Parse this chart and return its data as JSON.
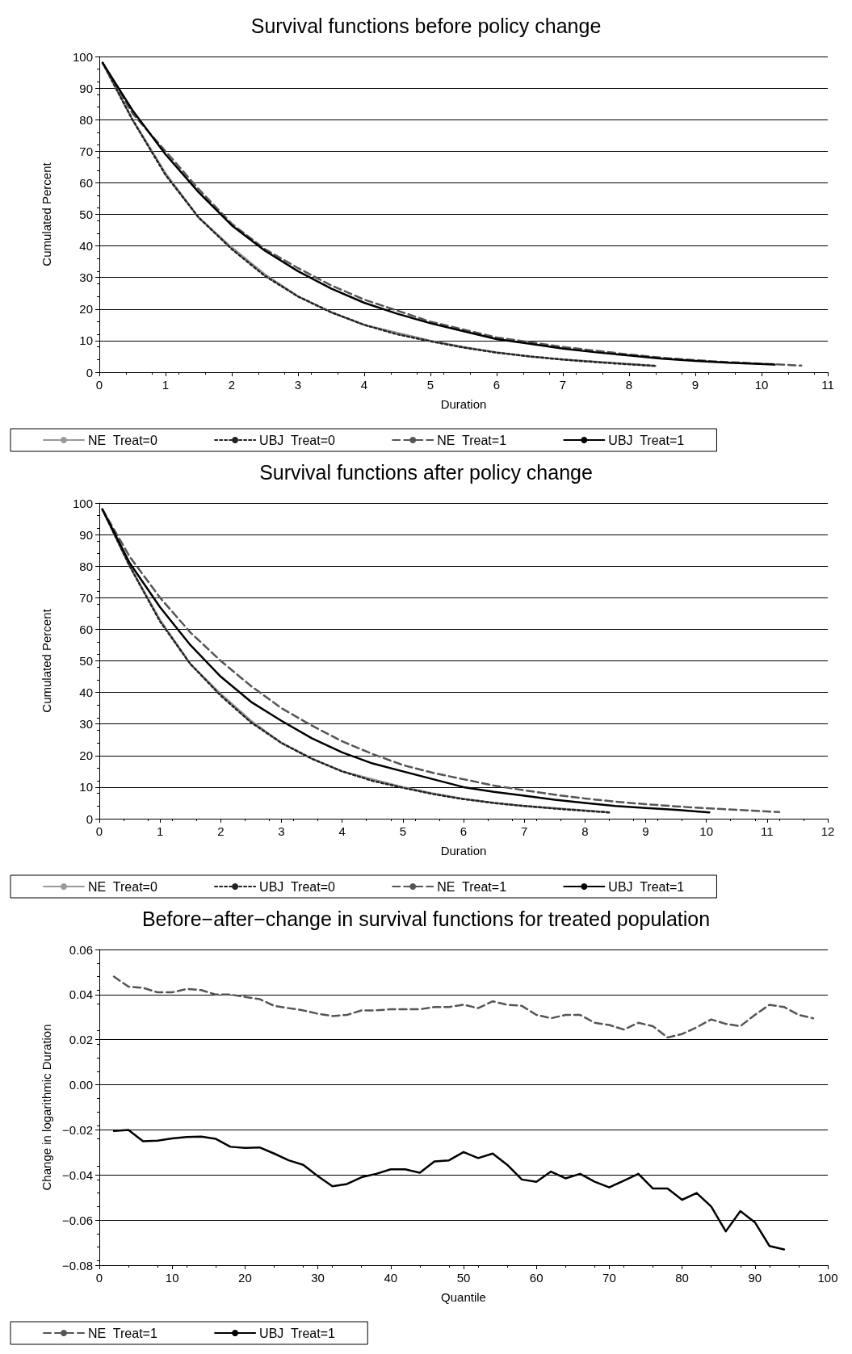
{
  "chart_data": [
    {
      "type": "line",
      "title": "Survival functions before policy change",
      "xlabel": "Duration",
      "ylabel": "Cumulated Percent",
      "xlim": [
        0,
        11
      ],
      "xticks": [
        0,
        1,
        2,
        3,
        4,
        5,
        6,
        7,
        8,
        9,
        10,
        11
      ],
      "ylim": [
        0,
        100
      ],
      "yticks": [
        0,
        10,
        20,
        30,
        40,
        50,
        60,
        70,
        80,
        90,
        100
      ],
      "grid": "y",
      "legend": "bottom",
      "marker": "none",
      "series": [
        {
          "name": "NE  Treat=0",
          "color": "#999999",
          "line_style": "solid",
          "x": [
            0.05,
            0.5,
            1,
            1.5,
            2,
            2.5,
            3,
            3.5,
            4,
            4.5,
            5,
            5.5,
            6,
            6.5,
            7,
            7.5,
            8,
            8.4
          ],
          "values": [
            98,
            80,
            63,
            49,
            39.5,
            31,
            24,
            19,
            15,
            12.5,
            10,
            8,
            6.3,
            5,
            4,
            3.3,
            2.6,
            2
          ]
        },
        {
          "name": "UBJ  Treat=0",
          "color": "#222222",
          "line_style": "dotted",
          "x": [
            0.05,
            0.5,
            1,
            1.5,
            2,
            2.5,
            3,
            3.5,
            4,
            4.5,
            5,
            5.5,
            6,
            6.5,
            7,
            7.5,
            8,
            8.4
          ],
          "values": [
            98,
            80,
            62.5,
            49,
            39,
            30.5,
            24,
            19,
            15,
            12,
            9.8,
            7.8,
            6.2,
            5,
            4,
            3.2,
            2.5,
            2
          ]
        },
        {
          "name": "NE  Treat=1",
          "color": "#555555",
          "line_style": "dashed",
          "x": [
            0.05,
            0.5,
            1,
            1.5,
            2,
            2.5,
            3,
            3.5,
            4,
            4.5,
            5,
            5.5,
            6,
            6.5,
            7,
            7.5,
            8,
            8.5,
            9,
            9.5,
            10,
            10.6
          ],
          "values": [
            98,
            82,
            70,
            58,
            47,
            39,
            33,
            27.5,
            23,
            19.5,
            16,
            13.5,
            11,
            9.5,
            8,
            6.8,
            5.6,
            4.6,
            3.8,
            3.2,
            2.7,
            2.1
          ]
        },
        {
          "name": "UBJ  Treat=1",
          "color": "#000000",
          "line_style": "solid",
          "x": [
            0.05,
            0.5,
            1,
            1.5,
            2,
            2.5,
            3,
            3.5,
            4,
            4.5,
            5,
            5.5,
            6,
            6.5,
            7,
            7.5,
            8,
            8.5,
            9,
            9.5,
            10.2
          ],
          "values": [
            98,
            83,
            69,
            57,
            46.5,
            38.5,
            32,
            26.5,
            22,
            18.5,
            15.5,
            13,
            10.5,
            9,
            7.5,
            6.3,
            5.3,
            4.3,
            3.6,
            3,
            2.4
          ]
        }
      ]
    },
    {
      "type": "line",
      "title": "Survival functions after policy change",
      "xlabel": "Duration",
      "ylabel": "Cumulated Percent",
      "xlim": [
        0,
        12
      ],
      "xticks": [
        0,
        1,
        2,
        3,
        4,
        5,
        6,
        7,
        8,
        9,
        10,
        11,
        12
      ],
      "ylim": [
        0,
        100
      ],
      "yticks": [
        0,
        10,
        20,
        30,
        40,
        50,
        60,
        70,
        80,
        90,
        100
      ],
      "grid": "y",
      "legend": "bottom",
      "marker": "none",
      "series": [
        {
          "name": "NE  Treat=0",
          "color": "#999999",
          "line_style": "solid",
          "x": [
            0.05,
            0.5,
            1,
            1.5,
            2,
            2.5,
            3,
            3.5,
            4,
            4.5,
            5,
            5.5,
            6,
            6.5,
            7,
            7.5,
            8,
            8.4
          ],
          "values": [
            98,
            80,
            63,
            49,
            39.5,
            31,
            24,
            19,
            15,
            12.5,
            10,
            8,
            6.3,
            5,
            4,
            3.3,
            2.6,
            2
          ]
        },
        {
          "name": "UBJ  Treat=0",
          "color": "#222222",
          "line_style": "dotted",
          "x": [
            0.05,
            0.5,
            1,
            1.5,
            2,
            2.5,
            3,
            3.5,
            4,
            4.5,
            5,
            5.5,
            6,
            6.5,
            7,
            7.5,
            8,
            8.4
          ],
          "values": [
            98,
            80,
            62.5,
            49,
            39,
            30.5,
            24,
            19,
            15,
            12,
            9.8,
            7.8,
            6.2,
            5,
            4,
            3.2,
            2.5,
            2
          ]
        },
        {
          "name": "NE  Treat=1",
          "color": "#555555",
          "line_style": "dashed",
          "x": [
            0.05,
            0.5,
            1,
            1.5,
            2,
            2.5,
            3,
            3.5,
            4,
            4.5,
            5,
            5.5,
            6,
            6.5,
            7,
            7.5,
            8,
            8.5,
            9,
            9.5,
            10,
            10.5,
            11,
            11.2
          ],
          "values": [
            98,
            83,
            70,
            59,
            50,
            42,
            35,
            29.5,
            24.5,
            20.5,
            17,
            14.5,
            12.5,
            10.5,
            9,
            7.6,
            6.4,
            5.4,
            4.6,
            3.9,
            3.3,
            2.8,
            2.3,
            2.1
          ]
        },
        {
          "name": "UBJ  Treat=1",
          "color": "#000000",
          "line_style": "solid",
          "x": [
            0.05,
            0.5,
            1,
            1.5,
            2,
            2.5,
            3,
            3.5,
            4,
            4.5,
            5,
            5.5,
            6,
            6.5,
            7,
            7.5,
            8,
            8.5,
            9,
            9.5,
            10.05
          ],
          "values": [
            98,
            81,
            67,
            55,
            45,
            37,
            31,
            25.5,
            21,
            17.5,
            15,
            12.5,
            10,
            8.5,
            7.3,
            6,
            5,
            4,
            3.4,
            2.8,
            2
          ]
        }
      ]
    },
    {
      "type": "line",
      "title": "Before−after−change in survival functions for treated population",
      "xlabel": "Quantile",
      "ylabel": "Change in logarithmic Duration",
      "xlim": [
        0,
        100
      ],
      "xticks": [
        0,
        10,
        20,
        30,
        40,
        50,
        60,
        70,
        80,
        90,
        100
      ],
      "ylim": [
        -0.08,
        0.06
      ],
      "yticks": [
        {
          "value": -0.08,
          "label": "−0.08"
        },
        {
          "value": -0.06,
          "label": "−0.06"
        },
        {
          "value": -0.04,
          "label": "−0.04"
        },
        {
          "value": -0.02,
          "label": "−0.02"
        },
        {
          "value": 0,
          "label": "0.00"
        },
        0.02,
        0.04,
        0.06
      ],
      "grid": "y",
      "legend": "bottom",
      "marker": "none",
      "series": [
        {
          "name": "NE  Treat=1",
          "color": "#555555",
          "line_style": "dashed",
          "x": [
            2,
            4,
            6,
            8,
            10,
            12,
            14,
            16,
            18,
            20,
            22,
            24,
            26,
            28,
            30,
            32,
            34,
            36,
            38,
            40,
            42,
            44,
            46,
            48,
            50,
            52,
            54,
            56,
            58,
            60,
            62,
            64,
            66,
            68,
            70,
            72,
            74,
            76,
            78,
            80,
            82,
            84,
            86,
            88,
            90,
            92,
            94,
            96,
            98
          ],
          "values": [
            0.048,
            0.0435,
            0.043,
            0.041,
            0.041,
            0.0425,
            0.042,
            0.04,
            0.04,
            0.039,
            0.038,
            0.035,
            0.034,
            0.033,
            0.0315,
            0.0305,
            0.031,
            0.033,
            0.033,
            0.0335,
            0.0335,
            0.0335,
            0.0345,
            0.0345,
            0.0355,
            0.034,
            0.037,
            0.0355,
            0.035,
            0.031,
            0.0295,
            0.031,
            0.031,
            0.0275,
            0.0265,
            0.0245,
            0.0275,
            0.026,
            0.021,
            0.0225,
            0.0255,
            0.029,
            0.027,
            0.026,
            0.031,
            0.0355,
            0.0345,
            0.031,
            0.0295
          ]
        },
        {
          "name": "UBJ  Treat=1",
          "color": "#000000",
          "line_style": "solid",
          "x": [
            2,
            4,
            6,
            8,
            10,
            12,
            14,
            16,
            18,
            20,
            22,
            24,
            26,
            28,
            30,
            32,
            34,
            36,
            38,
            40,
            42,
            44,
            46,
            48,
            50,
            52,
            54,
            56,
            58,
            60,
            62,
            64,
            66,
            68,
            70,
            72,
            74,
            76,
            78,
            80,
            82,
            84,
            86,
            88,
            90,
            92,
            94
          ],
          "values": [
            -0.0205,
            -0.02,
            -0.025,
            -0.0248,
            -0.0238,
            -0.0232,
            -0.023,
            -0.024,
            -0.0275,
            -0.028,
            -0.0278,
            -0.0305,
            -0.0335,
            -0.0355,
            -0.0405,
            -0.045,
            -0.044,
            -0.041,
            -0.0395,
            -0.0375,
            -0.0375,
            -0.039,
            -0.034,
            -0.0335,
            -0.0298,
            -0.0325,
            -0.0305,
            -0.0355,
            -0.042,
            -0.043,
            -0.0385,
            -0.0415,
            -0.0395,
            -0.043,
            -0.0455,
            -0.0425,
            -0.0395,
            -0.046,
            -0.046,
            -0.051,
            -0.048,
            -0.054,
            -0.065,
            -0.056,
            -0.061,
            -0.0715,
            -0.073
          ]
        }
      ]
    }
  ]
}
